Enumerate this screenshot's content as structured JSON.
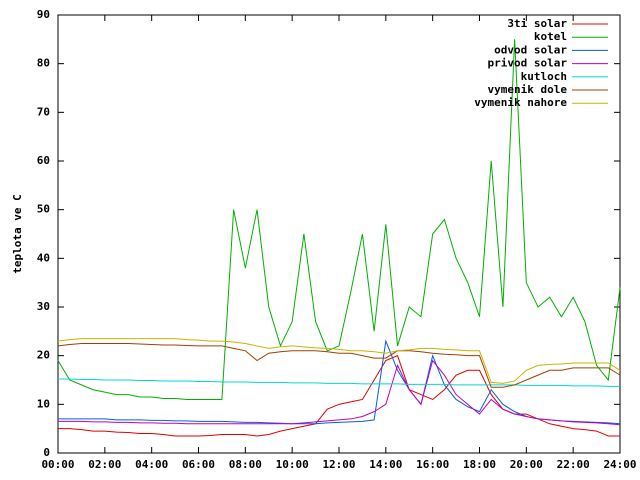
{
  "chart_data": {
    "type": "line",
    "ylabel": "teplota ve C",
    "xlim": [
      0,
      24
    ],
    "xticks": [
      {
        "value": 0,
        "label": "00:00"
      },
      {
        "value": 2,
        "label": "02:00"
      },
      {
        "value": 4,
        "label": "04:00"
      },
      {
        "value": 6,
        "label": "06:00"
      },
      {
        "value": 8,
        "label": "08:00"
      },
      {
        "value": 10,
        "label": "10:00"
      },
      {
        "value": 12,
        "label": "12:00"
      },
      {
        "value": 14,
        "label": "14:00"
      },
      {
        "value": 16,
        "label": "16:00"
      },
      {
        "value": 18,
        "label": "18:00"
      },
      {
        "value": 20,
        "label": "20:00"
      },
      {
        "value": 22,
        "label": "22:00"
      },
      {
        "value": 24,
        "label": "24:00"
      }
    ],
    "ylim": [
      0,
      90
    ],
    "yticks": [
      0,
      10,
      20,
      30,
      40,
      50,
      60,
      70,
      80,
      90
    ],
    "grid": false,
    "legend": "top-right",
    "x": [
      0,
      0.5,
      1,
      1.5,
      2,
      2.5,
      3,
      3.5,
      4,
      4.5,
      5,
      5.5,
      6,
      6.5,
      7,
      7.5,
      8,
      8.5,
      9,
      9.5,
      10,
      10.5,
      11,
      11.5,
      12,
      12.5,
      13,
      13.5,
      14,
      14.5,
      15,
      15.5,
      16,
      16.5,
      17,
      17.5,
      18,
      18.5,
      19,
      19.5,
      20,
      20.5,
      21,
      21.5,
      22,
      22.5,
      23,
      23.5,
      24
    ],
    "series": [
      {
        "name": "3ti solar",
        "color": "#e00000",
        "values": [
          5,
          5,
          4.8,
          4.5,
          4.5,
          4.3,
          4.2,
          4,
          4,
          3.8,
          3.5,
          3.5,
          3.5,
          3.6,
          3.8,
          3.8,
          3.8,
          3.5,
          3.8,
          4.5,
          5,
          5.5,
          6,
          9,
          10,
          10.5,
          11,
          15,
          19,
          20,
          13,
          12,
          11,
          13,
          16,
          17,
          17,
          12,
          9,
          8,
          8,
          7,
          6,
          5.5,
          5,
          4.8,
          4.5,
          3.5,
          3.5
        ]
      },
      {
        "name": "kotel",
        "color": "#00b000",
        "values": [
          19,
          15,
          14,
          13,
          12.5,
          12,
          12,
          11.5,
          11.5,
          11.2,
          11.2,
          11,
          11,
          11,
          11,
          50,
          38,
          50,
          30,
          22,
          27,
          45,
          27,
          21,
          22,
          33,
          45,
          25,
          47,
          22,
          30,
          28,
          45,
          48,
          40,
          35,
          28,
          60,
          30,
          85,
          35,
          30,
          32,
          28,
          32,
          27,
          18,
          15,
          34
        ]
      },
      {
        "name": "odvod solar",
        "color": "#0060e0",
        "values": [
          7,
          7,
          7,
          7,
          7,
          6.8,
          6.8,
          6.8,
          6.7,
          6.7,
          6.6,
          6.6,
          6.5,
          6.5,
          6.5,
          6.4,
          6.3,
          6.3,
          6.2,
          6.1,
          6,
          6,
          6,
          6.2,
          6.3,
          6.4,
          6.5,
          6.8,
          23,
          17,
          13,
          10,
          20,
          14,
          11,
          9.5,
          8.5,
          13,
          10,
          8.5,
          7.5,
          7,
          6.8,
          6.6,
          6.5,
          6.4,
          6.3,
          6.2,
          6
        ]
      },
      {
        "name": "privod solar",
        "color": "#c000c0",
        "values": [
          6.5,
          6.5,
          6.5,
          6.4,
          6.4,
          6.3,
          6.3,
          6.2,
          6.2,
          6.1,
          6.1,
          6,
          6,
          6,
          6,
          6,
          6,
          6,
          6,
          6,
          6,
          6.2,
          6.4,
          6.6,
          6.8,
          7,
          7.5,
          8.5,
          10,
          18,
          13,
          10,
          19,
          16,
          12,
          10,
          8,
          11,
          9,
          8,
          7.5,
          7,
          6.8,
          6.6,
          6.4,
          6.3,
          6.2,
          6,
          5.8
        ]
      },
      {
        "name": "kutloch",
        "color": "#00d8d8",
        "values": [
          15.2,
          15.2,
          15.1,
          15.1,
          15,
          15,
          15,
          14.9,
          14.9,
          14.8,
          14.8,
          14.8,
          14.7,
          14.7,
          14.6,
          14.6,
          14.6,
          14.5,
          14.5,
          14.5,
          14.4,
          14.4,
          14.4,
          14.3,
          14.3,
          14.3,
          14.2,
          14.2,
          14.2,
          14.2,
          14.1,
          14.1,
          14.1,
          14.1,
          14,
          14,
          14,
          14,
          14,
          14,
          13.9,
          13.9,
          13.9,
          13.9,
          13.8,
          13.8,
          13.8,
          13.7,
          13.7
        ]
      },
      {
        "name": "vymenik dole",
        "color": "#a04000",
        "values": [
          22,
          22.3,
          22.5,
          22.5,
          22.5,
          22.5,
          22.5,
          22.4,
          22.3,
          22.2,
          22.2,
          22.1,
          22,
          22,
          22,
          21.5,
          21,
          19,
          20.5,
          20.8,
          21,
          21,
          21,
          20.8,
          20.5,
          20.5,
          20,
          19.5,
          19.5,
          21,
          21,
          20.8,
          20.5,
          20.3,
          20.2,
          20,
          20,
          13.5,
          13.5,
          14,
          15,
          16,
          17,
          17,
          17.5,
          17.5,
          17.5,
          17.5,
          16
        ]
      },
      {
        "name": "vymenik nahore",
        "color": "#c8b400",
        "values": [
          23,
          23.3,
          23.5,
          23.5,
          23.5,
          23.5,
          23.5,
          23.5,
          23.5,
          23.5,
          23.5,
          23.3,
          23.2,
          23,
          23,
          22.8,
          22.5,
          22,
          21.5,
          21.8,
          22,
          21.8,
          21.6,
          21.5,
          21.3,
          21,
          21,
          20.8,
          20.5,
          21,
          21.2,
          21.5,
          21.5,
          21.3,
          21.2,
          21,
          21,
          14.5,
          14.3,
          14.8,
          17,
          18,
          18.2,
          18.3,
          18.5,
          18.5,
          18.5,
          18.5,
          17
        ]
      }
    ]
  }
}
